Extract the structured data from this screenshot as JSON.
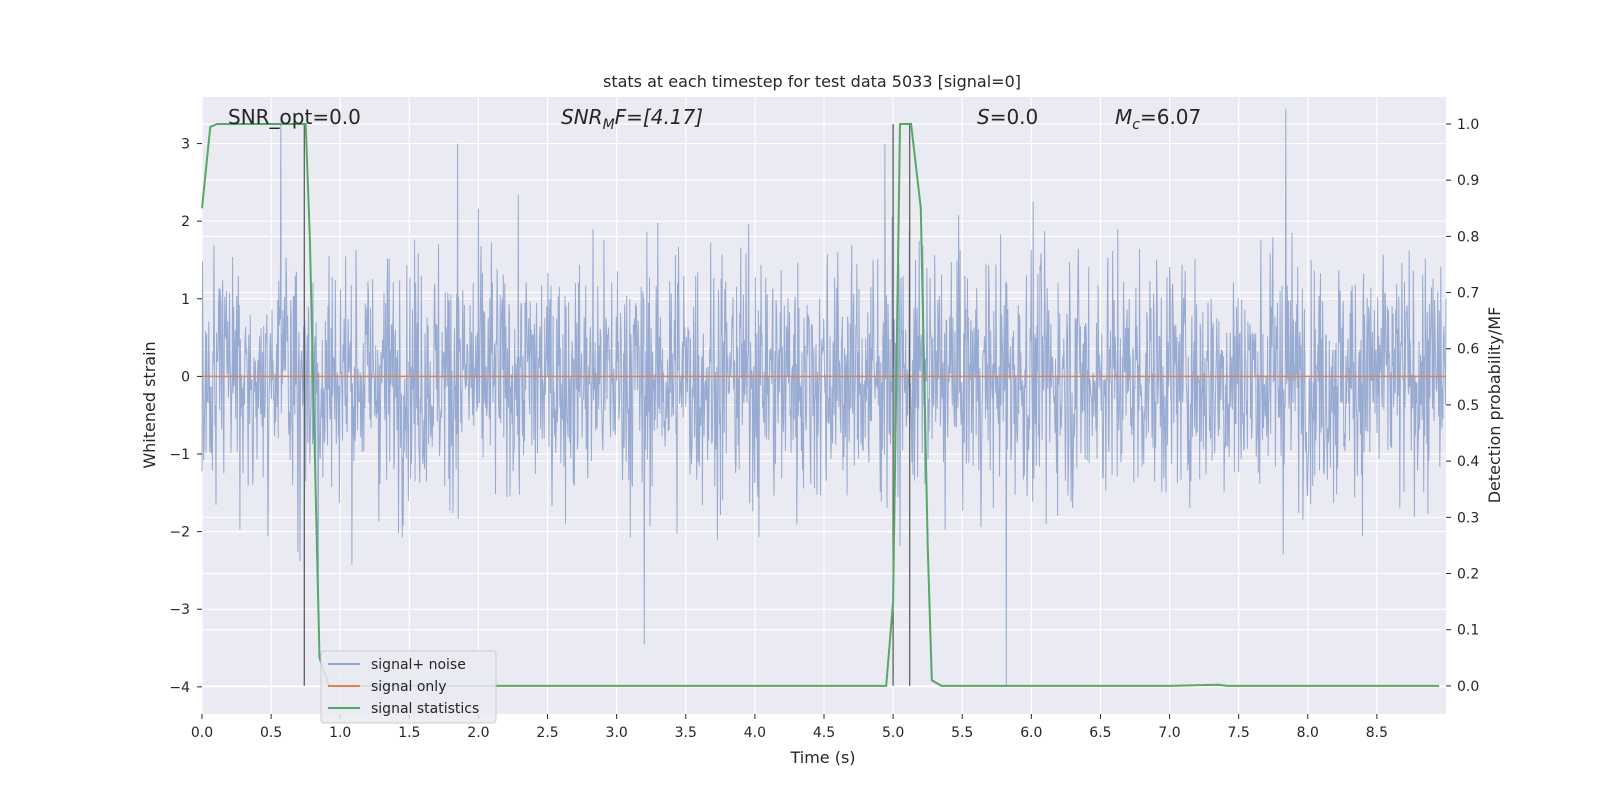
{
  "chart_data": {
    "type": "line",
    "title": "stats at each timestep for test data 5033 [signal=0]",
    "xlabel": "Time (s)",
    "ylabel": "Whitened strain",
    "y2label": "Detection probability/MF",
    "xlim": [
      0.0,
      9.0
    ],
    "ylim": [
      -4.35,
      3.6
    ],
    "y2lim": [
      -0.05,
      1.048
    ],
    "x_ticks": [
      "0.0",
      "0.5",
      "1.0",
      "1.5",
      "2.0",
      "2.5",
      "3.0",
      "3.5",
      "4.0",
      "4.5",
      "5.0",
      "5.5",
      "6.0",
      "6.5",
      "7.0",
      "7.5",
      "8.0",
      "8.5"
    ],
    "y_ticks": [
      "−4",
      "−3",
      "−2",
      "−1",
      "0",
      "1",
      "2",
      "3"
    ],
    "y2_ticks": [
      "0.0",
      "0.1",
      "0.2",
      "0.3",
      "0.4",
      "0.5",
      "0.6",
      "0.7",
      "0.8",
      "0.9",
      "1.0"
    ],
    "grid": true,
    "legend_position": "lower-left",
    "annotations": {
      "snr_opt": "SNR_opt=0.0",
      "snr_mf_base": "SNR",
      "snr_mf_sub": "M",
      "snr_mf_rest": "F=[4.17]",
      "s_italic": "S",
      "s_rest": "=0.0",
      "mc_base": "M",
      "mc_sub": "c",
      "mc_rest": "=6.07"
    },
    "series": [
      {
        "name": "signal+ noise",
        "color": "#92a6cf",
        "style": "dense noise, mostly within ±1.5, peaks near 3.4 and −4.0",
        "notable_peaks": [
          [
            0.57,
            3.35
          ],
          [
            1.85,
            3.0
          ],
          [
            4.94,
            3.0
          ],
          [
            7.84,
            3.45
          ],
          [
            5.82,
            -4.0
          ],
          [
            3.2,
            -3.45
          ],
          [
            0.84,
            -3.1
          ]
        ]
      },
      {
        "name": "signal only",
        "color": "#dd8452",
        "x": [
          0.0,
          9.0
        ],
        "y": [
          0.0,
          0.0
        ]
      },
      {
        "name": "signal statistics",
        "color": "#55a868",
        "axis": "right",
        "x": [
          0.0,
          0.06,
          0.11,
          0.5,
          0.74,
          0.75,
          0.78,
          0.85,
          0.92,
          1.0,
          2.0,
          3.0,
          4.0,
          4.95,
          5.0,
          5.05,
          5.1,
          5.13,
          5.2,
          5.25,
          5.28,
          5.35,
          6.0,
          7.0,
          7.35,
          7.42,
          8.0,
          8.95
        ],
        "y": [
          0.85,
          0.995,
          1.0,
          1.0,
          1.0,
          1.0,
          0.8,
          0.05,
          0.0,
          0.0,
          0.0,
          0.0,
          0.0,
          0.0,
          0.15,
          1.0,
          1.0,
          1.0,
          0.85,
          0.25,
          0.01,
          0.0,
          0.0,
          0.0,
          0.002,
          0.0,
          0.0,
          0.0
        ]
      }
    ],
    "vertical_markers": [
      0.74,
      5.0,
      5.12
    ]
  }
}
